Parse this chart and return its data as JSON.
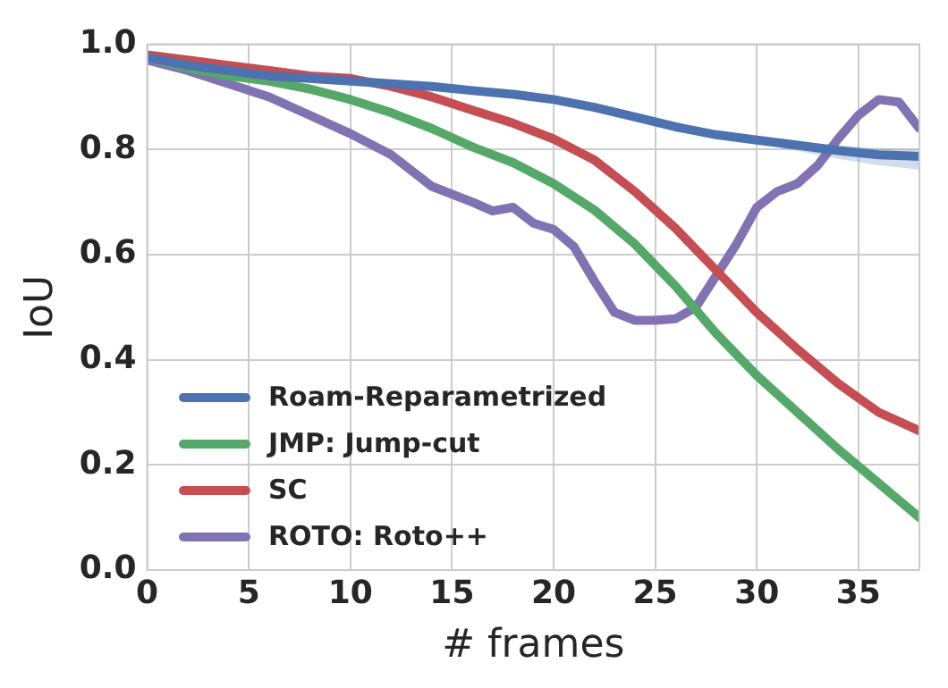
{
  "chart_data": {
    "type": "line",
    "xlabel": "# frames",
    "ylabel": "IoU",
    "xlim": [
      0,
      38
    ],
    "xticks": [
      0,
      5,
      10,
      15,
      20,
      25,
      30,
      35
    ],
    "ylim": [
      0,
      1
    ],
    "yticks": [
      {
        "value": 0,
        "label": "0.0"
      },
      {
        "value": 0.2,
        "label": "0.2"
      },
      {
        "value": 0.4,
        "label": "0.4"
      },
      {
        "value": 0.6,
        "label": "0.6"
      },
      {
        "value": 0.8,
        "label": "0.8"
      },
      {
        "value": 1,
        "label": "1.0"
      }
    ],
    "grid": true,
    "legend": "bottom left",
    "marker": "none",
    "line_style": "solid",
    "series": [
      {
        "name": "Roam-Reparametrized",
        "color": "#4c72b0",
        "x": [
          0,
          2,
          4,
          6,
          8,
          10,
          12,
          14,
          16,
          18,
          20,
          22,
          24,
          26,
          28,
          30,
          32,
          34,
          36,
          38
        ],
        "values": [
          0.975,
          0.96,
          0.95,
          0.94,
          0.935,
          0.93,
          0.925,
          0.92,
          0.912,
          0.905,
          0.895,
          0.88,
          0.862,
          0.843,
          0.828,
          0.818,
          0.808,
          0.798,
          0.79,
          0.787
        ],
        "lower": [
          0.975,
          0.96,
          0.95,
          0.94,
          0.935,
          0.93,
          0.925,
          0.92,
          0.912,
          0.905,
          0.895,
          0.88,
          0.862,
          0.843,
          0.828,
          0.812,
          0.797,
          0.782,
          0.77,
          0.762
        ],
        "upper": [
          0.975,
          0.96,
          0.95,
          0.94,
          0.935,
          0.93,
          0.925,
          0.92,
          0.912,
          0.905,
          0.895,
          0.88,
          0.862,
          0.843,
          0.828,
          0.822,
          0.815,
          0.808,
          0.802,
          0.8
        ]
      },
      {
        "name": "JMP: Jump-cut",
        "color": "#55a868",
        "x": [
          0,
          2,
          4,
          6,
          8,
          10,
          12,
          14,
          16,
          18,
          20,
          22,
          24,
          26,
          28,
          30,
          32,
          34,
          36,
          38
        ],
        "values": [
          0.975,
          0.955,
          0.94,
          0.93,
          0.915,
          0.895,
          0.87,
          0.84,
          0.805,
          0.775,
          0.735,
          0.685,
          0.62,
          0.54,
          0.45,
          0.37,
          0.3,
          0.23,
          0.165,
          0.1
        ]
      },
      {
        "name": "SC",
        "color": "#c44e52",
        "x": [
          0,
          2,
          4,
          6,
          8,
          10,
          12,
          14,
          16,
          18,
          20,
          22,
          24,
          26,
          28,
          30,
          32,
          34,
          36,
          38
        ],
        "values": [
          0.98,
          0.97,
          0.96,
          0.95,
          0.94,
          0.935,
          0.92,
          0.9,
          0.875,
          0.85,
          0.82,
          0.78,
          0.72,
          0.65,
          0.57,
          0.49,
          0.42,
          0.355,
          0.3,
          0.265
        ]
      },
      {
        "name": "ROTO: Roto++",
        "color": "#8172b2",
        "x": [
          0,
          2,
          4,
          6,
          8,
          10,
          12,
          14,
          15,
          16,
          17,
          18,
          19,
          20,
          21,
          22,
          23,
          24,
          25,
          26,
          27,
          28,
          29,
          30,
          31,
          32,
          33,
          34,
          35,
          36,
          37,
          38
        ],
        "values": [
          0.97,
          0.95,
          0.925,
          0.9,
          0.865,
          0.83,
          0.79,
          0.73,
          0.715,
          0.7,
          0.683,
          0.69,
          0.66,
          0.648,
          0.615,
          0.55,
          0.49,
          0.475,
          0.475,
          0.478,
          0.5,
          0.56,
          0.62,
          0.69,
          0.72,
          0.735,
          0.77,
          0.82,
          0.865,
          0.895,
          0.89,
          0.84
        ]
      }
    ]
  }
}
